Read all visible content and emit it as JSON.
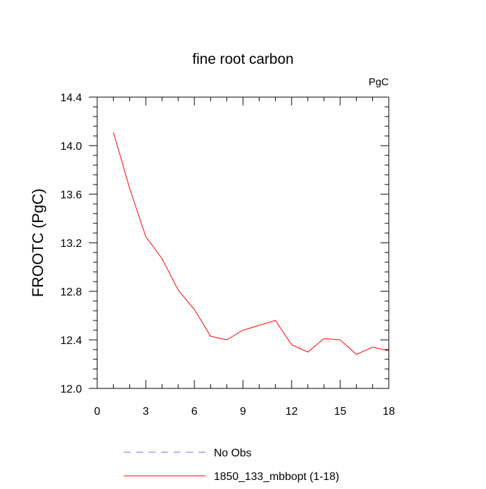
{
  "chart_data": {
    "type": "line",
    "title": "fine root carbon",
    "units_label": "PgC",
    "xlabel": "",
    "ylabel": "FROOTC  (PgC)",
    "xlim": [
      0,
      18
    ],
    "ylim": [
      12.0,
      14.4
    ],
    "x_ticks": [
      0,
      3,
      6,
      9,
      12,
      15,
      18
    ],
    "x_tick_labels": [
      "0",
      "3",
      "6",
      "9",
      "12",
      "15",
      "18"
    ],
    "y_ticks": [
      12.0,
      12.4,
      12.8,
      13.2,
      13.6,
      14.0,
      14.4
    ],
    "y_tick_labels": [
      "12.0",
      "12.4",
      "12.8",
      "13.2",
      "13.6",
      "14.0",
      "14.4"
    ],
    "grid": false,
    "legend_position": "bottom",
    "series": [
      {
        "name": "1850_133_mbbopt (1-18)",
        "color": "#ff0000",
        "style": "solid",
        "x": [
          1,
          2,
          3,
          4,
          5,
          6,
          7,
          8,
          9,
          10,
          11,
          12,
          13,
          14,
          15,
          16,
          17,
          18
        ],
        "y": [
          14.11,
          13.65,
          13.25,
          13.07,
          12.81,
          12.65,
          12.43,
          12.4,
          12.48,
          12.52,
          12.56,
          12.36,
          12.3,
          12.41,
          12.4,
          12.28,
          12.34,
          12.31
        ]
      }
    ],
    "legend": [
      {
        "label": "No Obs",
        "color": "#6a6aff",
        "style": "dashed"
      },
      {
        "label": "1850_133_mbbopt (1-18)",
        "color": "#ff0000",
        "style": "solid"
      }
    ]
  }
}
